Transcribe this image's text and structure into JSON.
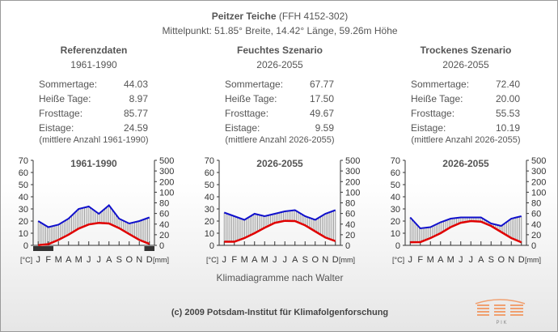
{
  "header": {
    "site_name": "Peitzer Teiche",
    "site_code": "(FFH 4152-302)",
    "center": "Mittelpunkt: 51.85° Breite, 14.42° Länge, 59.26m Höhe"
  },
  "panels": [
    {
      "heading": "Referenzdaten",
      "period": "1961-1990",
      "stats": [
        {
          "label": "Sommertage:",
          "value": "44.03"
        },
        {
          "label": "Heiße Tage:",
          "value": "8.97"
        },
        {
          "label": "Frosttage:",
          "value": "85.77"
        },
        {
          "label": "Eistage:",
          "value": "24.59"
        }
      ],
      "note": "(mittlere Anzahl 1961-1990)"
    },
    {
      "heading": "Feuchtes Szenario",
      "period": "2026-2055",
      "stats": [
        {
          "label": "Sommertage:",
          "value": "67.77"
        },
        {
          "label": "Heiße Tage:",
          "value": "17.50"
        },
        {
          "label": "Frosttage:",
          "value": "49.67"
        },
        {
          "label": "Eistage:",
          "value": "9.59"
        }
      ],
      "note": "(mittlere Anzahl 2026-2055)"
    },
    {
      "heading": "Trockenes Szenario",
      "period": "2026-2055",
      "stats": [
        {
          "label": "Sommertage:",
          "value": "72.40"
        },
        {
          "label": "Heiße Tage:",
          "value": "20.00"
        },
        {
          "label": "Frosttage:",
          "value": "55.53"
        },
        {
          "label": "Eistage:",
          "value": "10.19"
        }
      ],
      "note": "(mittlere Anzahl 2026-2055)"
    }
  ],
  "chart_data": [
    {
      "type": "line",
      "title": "1961-1990",
      "categories": [
        "J",
        "F",
        "M",
        "A",
        "M",
        "J",
        "J",
        "A",
        "S",
        "O",
        "N",
        "D"
      ],
      "xlabel_left": "[°C]",
      "xlabel_right": "[mm]",
      "left_ticks": [
        "70",
        "60",
        "50",
        "40",
        "30",
        "20",
        "10",
        "0"
      ],
      "right_ticks": [
        "500",
        "300",
        "200",
        "100",
        "80",
        "60",
        "40",
        "20",
        "0"
      ],
      "ylim_temp": [
        0,
        70
      ],
      "series": [
        {
          "name": "Temperatur [°C]",
          "color": "#e00000",
          "values": [
            0.2,
            1.0,
            4.5,
            8.8,
            13.8,
            17.2,
            18.5,
            18.0,
            14.2,
            9.3,
            4.5,
            1.2
          ]
        },
        {
          "name": "Niederschlag [mm]",
          "color": "#1010cc",
          "values": [
            40,
            30,
            34,
            44,
            60,
            64,
            52,
            66,
            44,
            36,
            40,
            46
          ]
        }
      ],
      "frost_months": [
        1,
        12
      ]
    },
    {
      "type": "line",
      "title": "2026-2055",
      "categories": [
        "J",
        "F",
        "M",
        "A",
        "M",
        "J",
        "J",
        "A",
        "S",
        "O",
        "N",
        "D"
      ],
      "xlabel_left": "[°C]",
      "xlabel_right": "[mm]",
      "left_ticks": [
        "70",
        "60",
        "50",
        "40",
        "30",
        "20",
        "10",
        "0"
      ],
      "right_ticks": [
        "500",
        "300",
        "200",
        "100",
        "80",
        "60",
        "40",
        "20",
        "0"
      ],
      "ylim_temp": [
        0,
        70
      ],
      "series": [
        {
          "name": "Temperatur [°C]",
          "color": "#e00000",
          "values": [
            3.0,
            3.0,
            6.0,
            10.0,
            14.5,
            18.5,
            20.2,
            20.0,
            16.5,
            11.5,
            6.5,
            3.5
          ]
        },
        {
          "name": "Niederschlag [mm]",
          "color": "#1010cc",
          "values": [
            54,
            48,
            42,
            52,
            48,
            52,
            56,
            58,
            48,
            42,
            52,
            58
          ]
        }
      ],
      "frost_months": []
    },
    {
      "type": "line",
      "title": "2026-2055",
      "categories": [
        "J",
        "F",
        "M",
        "A",
        "M",
        "J",
        "J",
        "A",
        "S",
        "O",
        "N",
        "D"
      ],
      "xlabel_left": "[°C]",
      "xlabel_right": "[mm]",
      "left_ticks": [
        "70",
        "60",
        "50",
        "40",
        "30",
        "20",
        "10",
        "0"
      ],
      "right_ticks": [
        "500",
        "300",
        "200",
        "100",
        "80",
        "60",
        "40",
        "20",
        "0"
      ],
      "ylim_temp": [
        0,
        70
      ],
      "series": [
        {
          "name": "Temperatur [°C]",
          "color": "#e00000",
          "values": [
            2.6,
            2.7,
            6.0,
            10.0,
            15.0,
            18.6,
            20.0,
            19.5,
            16.0,
            11.0,
            6.0,
            2.5
          ]
        },
        {
          "name": "Niederschlag [mm]",
          "color": "#1010cc",
          "values": [
            46,
            28,
            30,
            38,
            44,
            46,
            46,
            46,
            36,
            32,
            44,
            48
          ]
        }
      ],
      "frost_months": []
    }
  ],
  "footer": {
    "caption": "Klimadiagramme nach Walter",
    "copyright": "(c) 2009 Potsdam-Institut für Klimafolgenforschung",
    "logo_text": "P I K"
  }
}
